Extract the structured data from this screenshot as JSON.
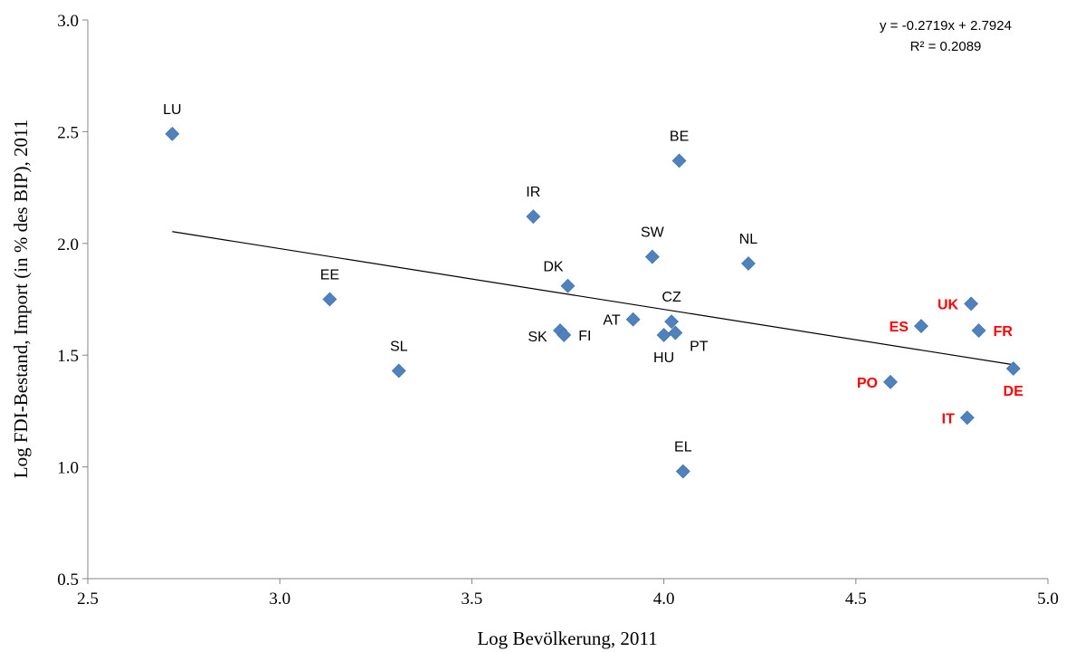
{
  "chart_data": {
    "type": "scatter",
    "title": "",
    "xlabel": "Log Bevölkerung, 2011",
    "ylabel": "Log FDI-Bestand, Import (in % des BIP), 2011",
    "xlim": [
      2.5,
      5.0
    ],
    "ylim": [
      0.5,
      3.0
    ],
    "x_ticks": [
      "2.5",
      "3.0",
      "3.5",
      "4.0",
      "4.5",
      "5.0"
    ],
    "y_ticks": [
      "0.5",
      "1.0",
      "1.5",
      "2.0",
      "2.5",
      "3.0"
    ],
    "grid": false,
    "legend": "none",
    "marker": "diamond",
    "marker_color": "#4F81BD",
    "label_color_default": "#000000",
    "label_color_highlight": "#FF0000",
    "points": [
      {
        "label": "LU",
        "x": 2.72,
        "y": 2.49,
        "highlight": false,
        "label_pos": "above"
      },
      {
        "label": "EE",
        "x": 3.13,
        "y": 1.75,
        "highlight": false,
        "label_pos": "above"
      },
      {
        "label": "SL",
        "x": 3.31,
        "y": 1.43,
        "highlight": false,
        "label_pos": "above"
      },
      {
        "label": "IR",
        "x": 3.66,
        "y": 2.12,
        "highlight": false,
        "label_pos": "above"
      },
      {
        "label": "DK",
        "x": 3.75,
        "y": 1.81,
        "highlight": false,
        "label_pos": "above-left"
      },
      {
        "label": "SK",
        "x": 3.73,
        "y": 1.61,
        "highlight": false,
        "label_pos": "below-left"
      },
      {
        "label": "FI",
        "x": 3.74,
        "y": 1.59,
        "highlight": false,
        "label_pos": "right"
      },
      {
        "label": "AT",
        "x": 3.92,
        "y": 1.66,
        "highlight": false,
        "label_pos": "left"
      },
      {
        "label": "SW",
        "x": 3.97,
        "y": 1.94,
        "highlight": false,
        "label_pos": "above"
      },
      {
        "label": "HU",
        "x": 4.0,
        "y": 1.59,
        "highlight": false,
        "label_pos": "below"
      },
      {
        "label": "CZ",
        "x": 4.02,
        "y": 1.65,
        "highlight": false,
        "label_pos": "above"
      },
      {
        "label": "PT",
        "x": 4.03,
        "y": 1.6,
        "highlight": false,
        "label_pos": "below-right"
      },
      {
        "label": "BE",
        "x": 4.04,
        "y": 2.37,
        "highlight": false,
        "label_pos": "above"
      },
      {
        "label": "EL",
        "x": 4.05,
        "y": 0.98,
        "highlight": false,
        "label_pos": "above"
      },
      {
        "label": "NL",
        "x": 4.22,
        "y": 1.91,
        "highlight": false,
        "label_pos": "above"
      },
      {
        "label": "PO",
        "x": 4.59,
        "y": 1.38,
        "highlight": true,
        "label_pos": "left"
      },
      {
        "label": "ES",
        "x": 4.67,
        "y": 1.63,
        "highlight": true,
        "label_pos": "left"
      },
      {
        "label": "IT",
        "x": 4.79,
        "y": 1.22,
        "highlight": true,
        "label_pos": "left"
      },
      {
        "label": "UK",
        "x": 4.8,
        "y": 1.73,
        "highlight": true,
        "label_pos": "left"
      },
      {
        "label": "FR",
        "x": 4.82,
        "y": 1.61,
        "highlight": true,
        "label_pos": "right"
      },
      {
        "label": "DE",
        "x": 4.91,
        "y": 1.44,
        "highlight": true,
        "label_pos": "below"
      }
    ],
    "trendline": {
      "slope": -0.2719,
      "intercept": 2.7924,
      "x_range": [
        2.72,
        4.91
      ],
      "equation": "y = -0.2719x + 2.7924",
      "r_squared": "R² = 0.2089"
    }
  }
}
